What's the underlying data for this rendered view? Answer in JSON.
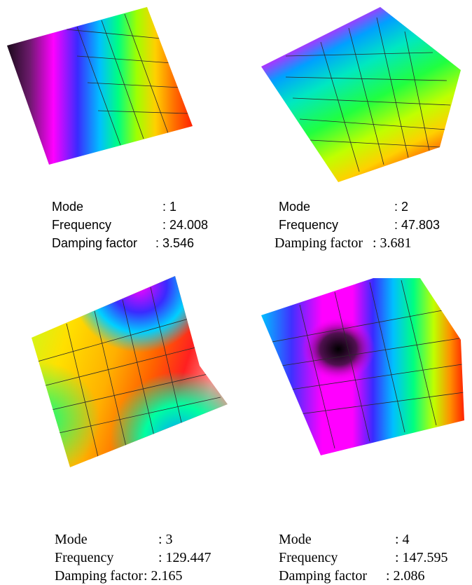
{
  "modes": [
    {
      "mode_label": "Mode",
      "mode_value": ": 1",
      "freq_label": "Frequency",
      "freq_value": ": 24.008",
      "damp_label": "Damping factor",
      "damp_value": ": 3.546"
    },
    {
      "mode_label": "Mode",
      "mode_value": ": 2",
      "freq_label": "Frequency",
      "freq_value": ": 47.803",
      "damp_label": "Damping factor",
      "damp_value": ": 3.681"
    },
    {
      "mode_label": "Mode",
      "mode_value": ": 3",
      "freq_label": "Frequency",
      "freq_value": ": 129.447",
      "damp_label": "Damping factor",
      "damp_value": ": 2.165"
    },
    {
      "mode_label": "Mode",
      "mode_value": ": 4",
      "freq_label": "Frequency",
      "freq_value": ": 147.595",
      "damp_label": "Damping factor",
      "damp_value": ": 2.086"
    }
  ]
}
